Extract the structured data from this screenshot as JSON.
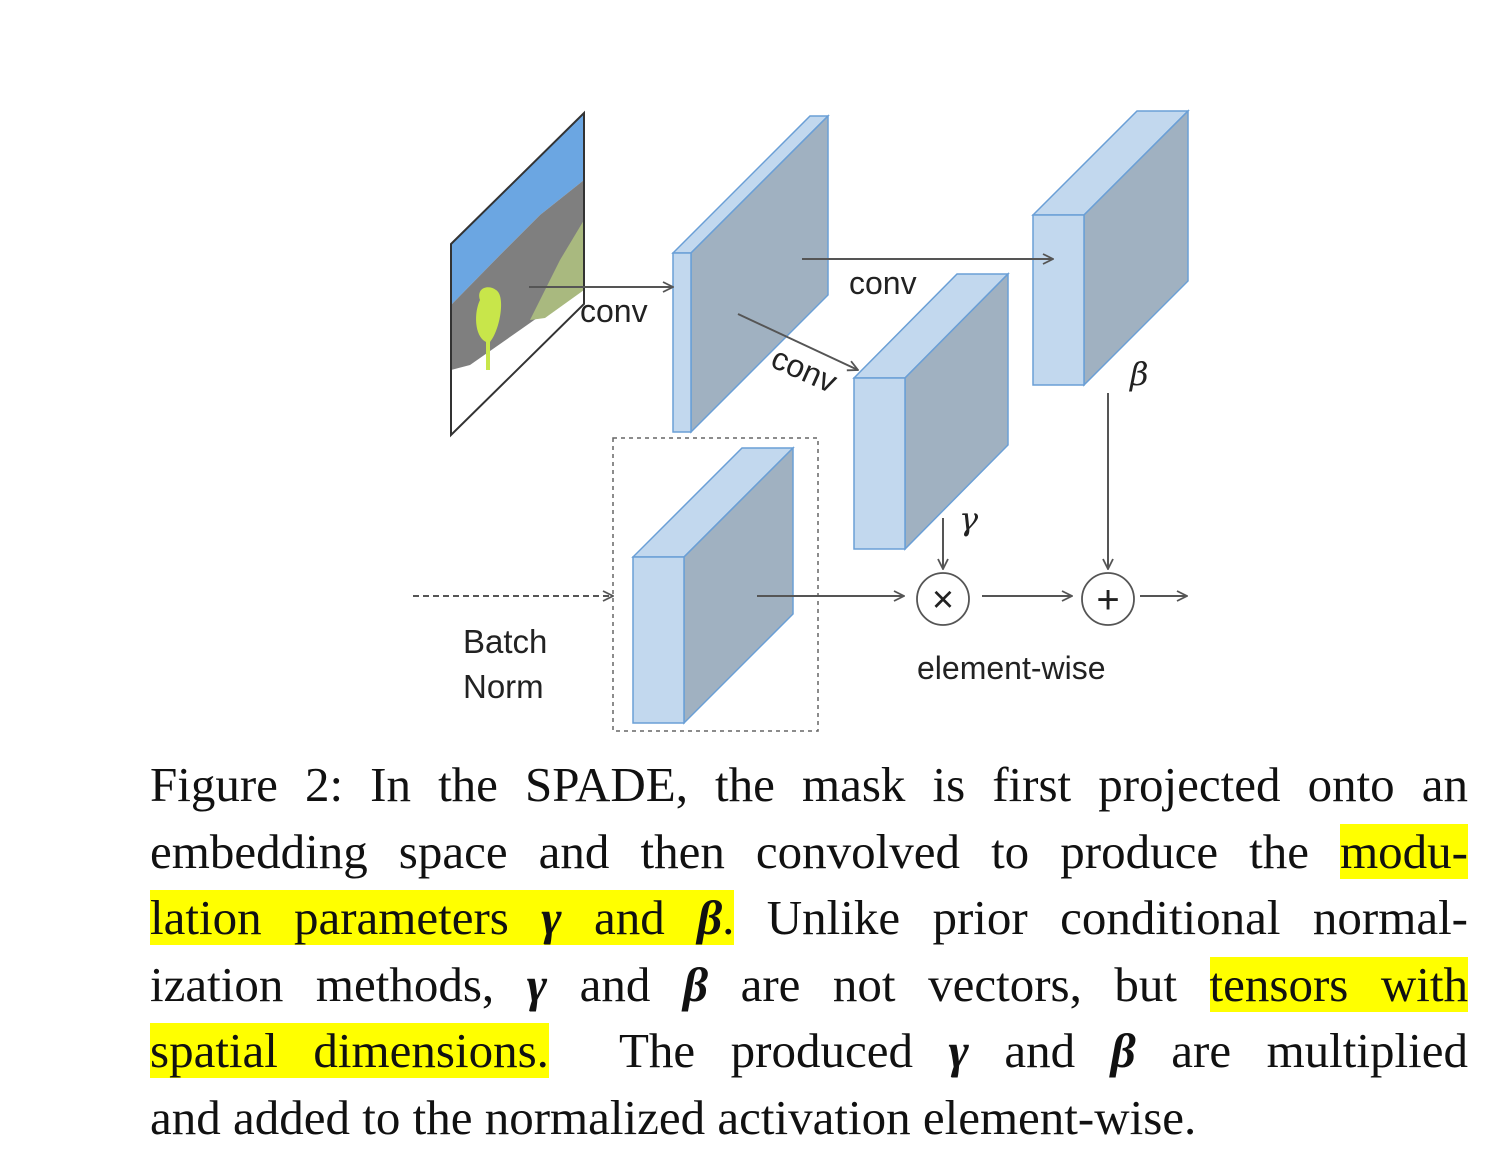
{
  "diagram": {
    "labels": {
      "conv_left": "conv",
      "conv_top": "conv",
      "conv_diag": "conv",
      "beta": "β",
      "gamma": "γ",
      "batch": "Batch",
      "norm": "Norm",
      "element_wise": "element-wise",
      "times": "×",
      "plus": "+"
    },
    "colors": {
      "block_front": "#c2d8ee",
      "block_side": "#a0b1c1",
      "block_edge": "#6a9fd6",
      "sky": "#6ba6e2",
      "road": "#7f7f7f",
      "grass": "#a9b97f",
      "tree": "#c8e64a",
      "arrow": "#555555"
    }
  },
  "caption": {
    "l1": "Figure 2: In the SPADE, the mask is first projected onto an",
    "l2_a": "embedding space and then convolved to produce the ",
    "l2_h": "modu-",
    "l3_h1": "lation parameters ",
    "l3_g": "γ",
    "l3_h2": " and ",
    "l3_b": "β",
    "l3_h3": ".",
    "l3_c": " Unlike prior conditional normal-",
    "l4_a": "ization methods, ",
    "l4_g": "γ",
    "l4_b1": " and ",
    "l4_b": "β",
    "l4_c": " are not vectors, but ",
    "l4_h": "tensors with",
    "l5_h": "spatial dimensions.",
    "l5_a": "  The produced ",
    "l5_g": "γ",
    "l5_b1": " and ",
    "l5_b": "β",
    "l5_c": " are multiplied",
    "l6": "and added to the normalized activation element-wise."
  }
}
